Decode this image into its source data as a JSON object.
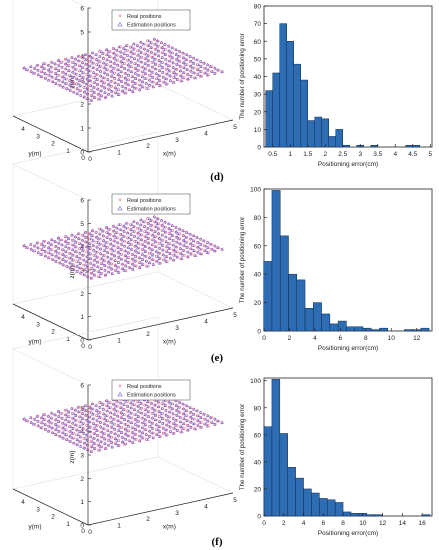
{
  "panels": [
    {
      "label": "(d)",
      "scatter3d": {
        "legend": [
          "Real positions",
          "Estimation positions"
        ],
        "z_axis": {
          "label": "z(m)",
          "ticks": [
            "0",
            "1",
            "2",
            "3",
            "4",
            "5",
            "6"
          ]
        },
        "y_axis": {
          "label": "y(m)",
          "ticks": [
            "0",
            "1",
            "2",
            "3",
            "4"
          ]
        },
        "x_axis": {
          "label": "x(m)",
          "ticks": [
            "0",
            "1",
            "2",
            "3",
            "4",
            "5"
          ]
        },
        "plane_height": 2
      },
      "histogram": {
        "type": "bar",
        "xlabel": "Positioning error(cm)",
        "ylabel": "The number of positioning error",
        "xticks": [
          "0.5",
          "1",
          "1.5",
          "2",
          "2.5",
          "3",
          "3.5",
          "4",
          "4.5",
          "5"
        ],
        "yticks": [
          "0",
          "10",
          "20",
          "30",
          "40",
          "50",
          "60",
          "70",
          "80"
        ],
        "xlim": [
          0.25,
          5.05
        ],
        "ylim": [
          0,
          80
        ],
        "bin_width": 0.2,
        "x": [
          0.4,
          0.6,
          0.8,
          1.0,
          1.2,
          1.4,
          1.6,
          1.8,
          2.0,
          2.2,
          2.4,
          2.6,
          2.8,
          3.0,
          3.2,
          3.4,
          3.6,
          3.8,
          4.0,
          4.2,
          4.4,
          4.6,
          4.8
        ],
        "values": [
          32,
          42,
          70,
          60,
          47,
          38,
          15,
          17,
          16,
          6,
          10,
          1,
          0,
          1,
          0,
          1,
          0,
          0,
          0,
          0,
          1,
          1,
          0
        ]
      }
    },
    {
      "label": "(e)",
      "scatter3d": {
        "legend": [
          "Real positions",
          "Estimation positions"
        ],
        "z_axis": {
          "label": "z(m)",
          "ticks": [
            "0",
            "1",
            "2",
            "3",
            "4",
            "5",
            "6"
          ]
        },
        "y_axis": {
          "label": "y(m)",
          "ticks": [
            "0",
            "1",
            "2",
            "3",
            "4"
          ]
        },
        "x_axis": {
          "label": "x(m)",
          "ticks": [
            "0",
            "1",
            "2",
            "3",
            "4",
            "5"
          ]
        },
        "plane_height": 2.5
      },
      "histogram": {
        "type": "bar",
        "xlabel": "Positioning error(cm)",
        "ylabel": "The number of positioning error",
        "xticks": [
          "0",
          "2",
          "4",
          "6",
          "8",
          "10",
          "12"
        ],
        "yticks": [
          "0",
          "20",
          "40",
          "60",
          "80",
          "100"
        ],
        "xlim": [
          0,
          13.2
        ],
        "ylim": [
          0,
          100
        ],
        "bin_width": 0.65,
        "x": [
          0.3,
          0.95,
          1.6,
          2.25,
          2.9,
          3.55,
          4.2,
          4.85,
          5.5,
          6.15,
          6.8,
          7.45,
          8.1,
          8.75,
          9.4,
          10.05,
          10.7,
          11.35,
          12.0,
          12.65
        ],
        "values": [
          49,
          99,
          67,
          40,
          36,
          16,
          20,
          12,
          5,
          7,
          3,
          3,
          2,
          1,
          2,
          0,
          0,
          1,
          1,
          2
        ]
      }
    },
    {
      "label": "(f)",
      "scatter3d": {
        "legend": [
          "Real positions",
          "Estimation positions"
        ],
        "z_axis": {
          "label": "z(m)",
          "ticks": [
            "0",
            "1",
            "2",
            "3",
            "4",
            "5",
            "6"
          ]
        },
        "y_axis": {
          "label": "y(m)",
          "ticks": [
            "0",
            "1",
            "2",
            "3",
            "4"
          ]
        },
        "x_axis": {
          "label": "x(m)",
          "ticks": [
            "0",
            "1",
            "2",
            "3",
            "4",
            "5"
          ]
        },
        "plane_height": 3
      },
      "histogram": {
        "type": "bar",
        "xlabel": "Positioning error(cm)",
        "ylabel": "The number of positioning error",
        "xticks": [
          "0",
          "2",
          "4",
          "6",
          "8",
          "10",
          "12",
          "14",
          "16"
        ],
        "yticks": [
          "0",
          "20",
          "40",
          "60",
          "80",
          "100"
        ],
        "xlim": [
          0,
          17
        ],
        "ylim": [
          0,
          102
        ],
        "bin_width": 0.8,
        "x": [
          0.4,
          1.2,
          2.0,
          2.8,
          3.6,
          4.4,
          5.2,
          6.0,
          6.8,
          7.6,
          8.4,
          9.2,
          10.0,
          10.8,
          11.6,
          12.4,
          13.2,
          14.0,
          14.8,
          15.6,
          16.4
        ],
        "values": [
          66,
          101,
          61,
          36,
          28,
          20,
          17,
          13,
          12,
          10,
          3,
          2,
          2,
          1,
          1,
          0,
          0,
          0,
          0,
          0,
          1
        ]
      }
    }
  ],
  "colors": {
    "bar": "#2e6db3",
    "bar_edge": "#0d2b52",
    "real_marker": "#e05a88",
    "estimation_marker": "#6a5fcf",
    "axis": "#222222",
    "grid": "#d9d9d9"
  }
}
